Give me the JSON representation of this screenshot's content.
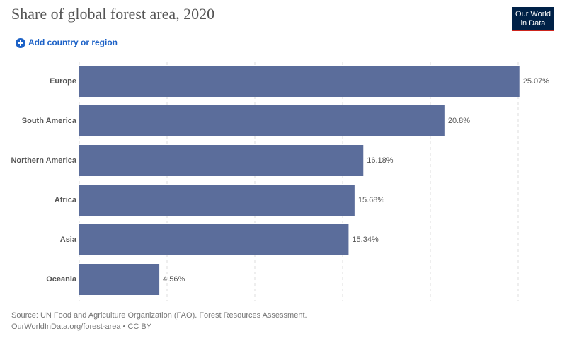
{
  "chart_data": {
    "type": "hbar",
    "title": "Share of global forest area, 2020",
    "categories": [
      "Europe",
      "South America",
      "Northern America",
      "Africa",
      "Asia",
      "Oceania"
    ],
    "values": [
      25.07,
      20.8,
      16.18,
      15.68,
      15.34,
      4.56
    ],
    "value_labels": [
      "25.07%",
      "20.8%",
      "16.18%",
      "15.68%",
      "15.34%",
      "4.56%"
    ],
    "color": "#5b6d9b",
    "xlim": [
      0,
      25
    ],
    "xticks": [
      0,
      5,
      10,
      15,
      20,
      25
    ],
    "grid": true
  },
  "logo": [
    "Our World",
    "in Data"
  ],
  "add_button": "Add country or region",
  "source": "Source: UN Food and Agriculture Organization (FAO). Forest Resources Assessment.",
  "url": "OurWorldInData.org/forest-area • CC BY"
}
